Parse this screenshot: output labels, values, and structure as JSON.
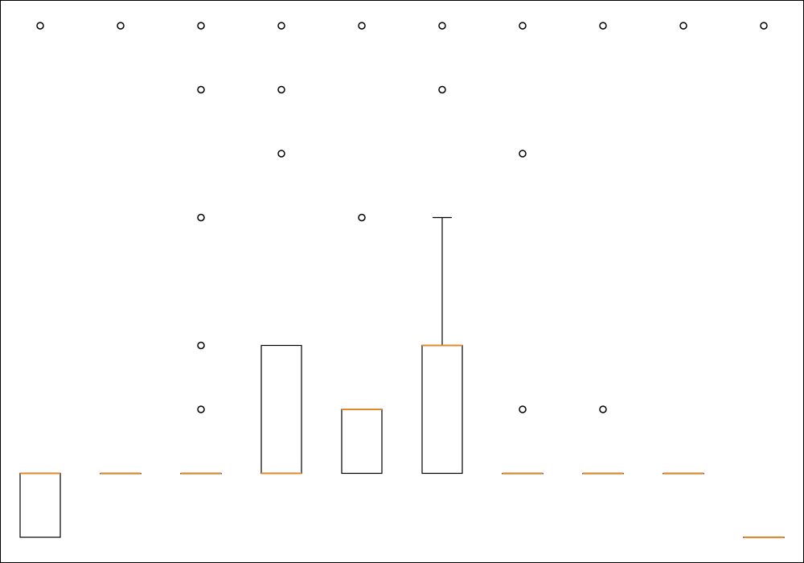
{
  "chart_data": {
    "type": "box",
    "grid": false,
    "ylim": [
      -1,
      7
    ],
    "boxes": [
      {
        "q1": -1,
        "median": 0,
        "q3": 0,
        "whisker_low": -1,
        "whisker_high": 0,
        "fliers": [
          7
        ]
      },
      {
        "q1": 0,
        "median": 0,
        "q3": 0,
        "whisker_low": 0,
        "whisker_high": 0,
        "fliers": [
          7
        ]
      },
      {
        "q1": 0,
        "median": 0,
        "q3": 0,
        "whisker_low": 0,
        "whisker_high": 0,
        "fliers": [
          1,
          2,
          4,
          6,
          7
        ]
      },
      {
        "q1": 0,
        "median": 0,
        "q3": 2,
        "whisker_low": 0,
        "whisker_high": 2,
        "fliers": [
          5,
          6,
          7
        ]
      },
      {
        "q1": 0,
        "median": 1,
        "q3": 1,
        "whisker_low": 0,
        "whisker_high": 1,
        "fliers": [
          4,
          7
        ]
      },
      {
        "q1": 0,
        "median": 2,
        "q3": 2,
        "whisker_low": 0,
        "whisker_high": 4,
        "fliers": [
          6,
          7
        ]
      },
      {
        "q1": 0,
        "median": 0,
        "q3": 0,
        "whisker_low": 0,
        "whisker_high": 0,
        "fliers": [
          1,
          5,
          7
        ]
      },
      {
        "q1": 0,
        "median": 0,
        "q3": 0,
        "whisker_low": 0,
        "whisker_high": 0,
        "fliers": [
          1,
          7
        ]
      },
      {
        "q1": 0,
        "median": 0,
        "q3": 0,
        "whisker_low": 0,
        "whisker_high": 0,
        "fliers": [
          7
        ]
      },
      {
        "q1": -1,
        "median": -1,
        "q3": -1,
        "whisker_low": -1,
        "whisker_high": -1,
        "fliers": [
          7
        ]
      }
    ],
    "colors": {
      "box": "#000000",
      "median": "#e08a2c",
      "flier": "#000000",
      "frame": "#000000"
    }
  }
}
